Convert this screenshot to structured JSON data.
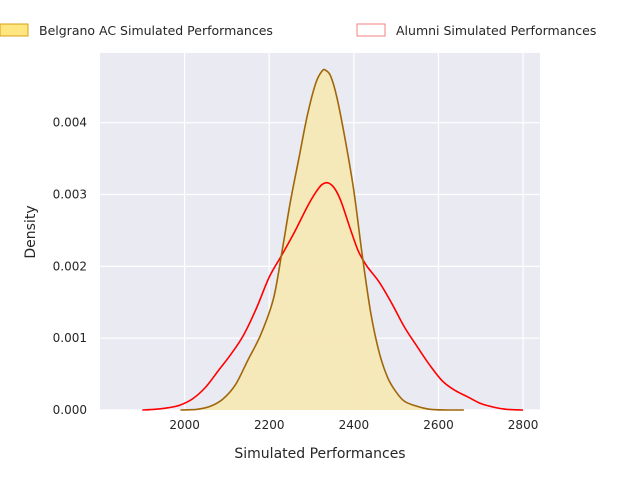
{
  "chart_data": {
    "type": "area",
    "title": "",
    "xlabel": "Simulated Performances",
    "ylabel": "Density",
    "xlim": [
      1800,
      2840
    ],
    "ylim": [
      0,
      0.00497
    ],
    "xticks": [
      2000,
      2200,
      2400,
      2600,
      2800
    ],
    "yticks": [
      0.0,
      0.001,
      0.002,
      0.003,
      0.004
    ],
    "ytick_labels": [
      "0.000",
      "0.001",
      "0.002",
      "0.003",
      "0.004"
    ],
    "grid": true,
    "legend_position": "top",
    "series": [
      {
        "name": "Belgrano AC Simulated Performances",
        "style": "filled",
        "line_color": "#a0660a",
        "fill_color": "#f5e8b5",
        "legend_fill": "#ffe680",
        "legend_edge": "#d4a017",
        "x": [
          1990,
          2030,
          2060,
          2090,
          2120,
          2150,
          2180,
          2210,
          2230,
          2250,
          2270,
          2290,
          2310,
          2325,
          2333,
          2345,
          2360,
          2380,
          2400,
          2420,
          2440,
          2460,
          2480,
          2500,
          2520,
          2550,
          2580,
          2620,
          2660
        ],
        "y": [
          0.0,
          1e-05,
          5e-05,
          0.00015,
          0.00035,
          0.0007,
          0.00105,
          0.00155,
          0.0022,
          0.0029,
          0.0035,
          0.0041,
          0.00455,
          0.00472,
          0.00473,
          0.00465,
          0.00435,
          0.00375,
          0.00305,
          0.00215,
          0.00135,
          0.0008,
          0.00045,
          0.00025,
          0.00012,
          5e-05,
          1e-05,
          0.0,
          0.0
        ]
      },
      {
        "name": "Alumni Simulated Performances",
        "style": "line",
        "line_color": "#ff0000",
        "legend_fill": "#ffffff",
        "legend_edge": "#f08080",
        "x": [
          1900,
          1930,
          1960,
          1990,
          2020,
          2050,
          2080,
          2110,
          2140,
          2170,
          2200,
          2230,
          2260,
          2290,
          2310,
          2325,
          2340,
          2355,
          2370,
          2390,
          2410,
          2430,
          2460,
          2490,
          2520,
          2550,
          2580,
          2610,
          2640,
          2670,
          2700,
          2730,
          2760,
          2800
        ],
        "y": [
          0.0,
          1e-05,
          3e-05,
          7e-05,
          0.00016,
          0.00032,
          0.00055,
          0.00078,
          0.00105,
          0.00142,
          0.00185,
          0.00216,
          0.00248,
          0.00283,
          0.00303,
          0.00314,
          0.00316,
          0.00308,
          0.0029,
          0.00255,
          0.00222,
          0.00201,
          0.00178,
          0.00148,
          0.00115,
          0.00088,
          0.00062,
          0.0004,
          0.00027,
          0.00018,
          9e-05,
          4e-05,
          1e-05,
          0.0
        ]
      }
    ]
  }
}
